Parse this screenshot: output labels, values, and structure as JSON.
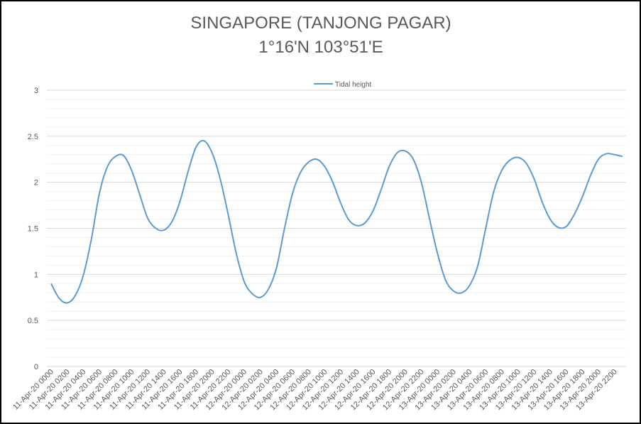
{
  "chart_data": {
    "type": "line",
    "title": "SINGAPORE (TANJONG PAGAR)",
    "subtitle": "1°16'N 103°51'E",
    "xlabel": "",
    "ylabel": "",
    "ylim": [
      0,
      3
    ],
    "y_ticks": [
      "0",
      "0.5",
      "1",
      "1.5",
      "2",
      "2.5",
      "3"
    ],
    "grid": "horizontal major every 0.5, minor every 0.1",
    "legend_position": "top",
    "color": "#5B9BD5",
    "tick_labels": [
      "11-Apr-20 0000",
      "11-Apr-20 0200",
      "11-Apr-20 0400",
      "11-Apr-20 0600",
      "11-Apr-20 0800",
      "11-Apr-20 1000",
      "11-Apr-20 1200",
      "11-Apr-20 1400",
      "11-Apr-20 1600",
      "11-Apr-20 1800",
      "11-Apr-20 2000",
      "11-Apr-20 2200",
      "12-Apr-20 0000",
      "12-Apr-20 0200",
      "12-Apr-20 0400",
      "12-Apr-20 0600",
      "12-Apr-20 0800",
      "12-Apr-20 1000",
      "12-Apr-20 1200",
      "12-Apr-20 1400",
      "12-Apr-20 1600",
      "12-Apr-20 1800",
      "12-Apr-20 2000",
      "12-Apr-20 2200",
      "13-Apr-20 0000",
      "13-Apr-20 0200",
      "13-Apr-20 0400",
      "13-Apr-20 0600",
      "13-Apr-20 0800",
      "13-Apr-20 1000",
      "13-Apr-20 1200",
      "13-Apr-20 1400",
      "13-Apr-20 1600",
      "13-Apr-20 1800",
      "13-Apr-20 2000",
      "13-Apr-20 2200"
    ],
    "series": [
      {
        "name": "Tidal height",
        "values": [
          0.9,
          0.74,
          0.69,
          0.77,
          0.99,
          1.38,
          1.88,
          2.17,
          2.28,
          2.29,
          2.13,
          1.87,
          1.61,
          1.5,
          1.48,
          1.57,
          1.79,
          2.11,
          2.38,
          2.45,
          2.32,
          2.04,
          1.65,
          1.23,
          0.92,
          0.79,
          0.75,
          0.84,
          1.07,
          1.5,
          1.88,
          2.11,
          2.22,
          2.25,
          2.17,
          2.0,
          1.77,
          1.59,
          1.53,
          1.56,
          1.69,
          1.92,
          2.17,
          2.32,
          2.34,
          2.25,
          2.0,
          1.61,
          1.23,
          0.94,
          0.82,
          0.8,
          0.88,
          1.09,
          1.5,
          1.9,
          2.13,
          2.24,
          2.27,
          2.21,
          2.04,
          1.79,
          1.6,
          1.51,
          1.52,
          1.65,
          1.84,
          2.07,
          2.25,
          2.31,
          2.3,
          2.28
        ]
      }
    ]
  }
}
